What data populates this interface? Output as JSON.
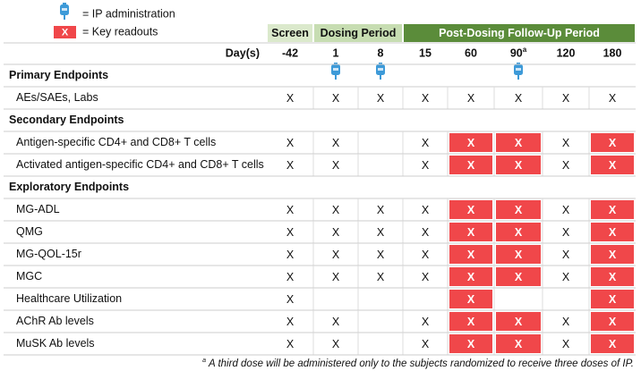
{
  "legend": {
    "ip_text": "= IP administration",
    "key_symbol": "X",
    "key_text": "= Key readouts"
  },
  "header": {
    "columns": [
      "Screen",
      "Dosing Period",
      "Post-Dosing Follow-Up Period"
    ],
    "day_label": "Day(s)"
  },
  "days": [
    {
      "day": "-42",
      "ip": false
    },
    {
      "day": "1",
      "ip": true
    },
    {
      "day": "8",
      "ip": true
    },
    {
      "day": "15",
      "ip": false
    },
    {
      "day": "60",
      "ip": false
    },
    {
      "day": "90",
      "note": "a",
      "ip": true
    },
    {
      "day": "120",
      "ip": false
    },
    {
      "day": "180",
      "ip": false
    }
  ],
  "sections": [
    {
      "title": "Primary Endpoints",
      "rows": [
        {
          "label": "AEs/SAEs, Labs",
          "cells": [
            "X",
            "X",
            "X",
            "X",
            "X",
            "X",
            "X",
            "X"
          ],
          "key": [
            false,
            false,
            false,
            false,
            false,
            false,
            false,
            false
          ]
        }
      ]
    },
    {
      "title": "Secondary Endpoints",
      "rows": [
        {
          "label": "Antigen-specific CD4+ and CD8+ T cells",
          "cells": [
            "X",
            "X",
            null,
            "X",
            "X",
            "X",
            "X",
            "X"
          ],
          "key": [
            false,
            false,
            false,
            false,
            true,
            true,
            false,
            true
          ]
        },
        {
          "label": "Activated antigen-specific CD4+ and CD8+ T cells",
          "cells": [
            "X",
            "X",
            null,
            "X",
            "X",
            "X",
            "X",
            "X"
          ],
          "key": [
            false,
            false,
            false,
            false,
            true,
            true,
            false,
            true
          ]
        }
      ]
    },
    {
      "title": "Exploratory Endpoints",
      "rows": [
        {
          "label": "MG-ADL",
          "cells": [
            "X",
            "X",
            "X",
            "X",
            "X",
            "X",
            "X",
            "X"
          ],
          "key": [
            false,
            false,
            false,
            false,
            true,
            true,
            false,
            true
          ]
        },
        {
          "label": "QMG",
          "cells": [
            "X",
            "X",
            "X",
            "X",
            "X",
            "X",
            "X",
            "X"
          ],
          "key": [
            false,
            false,
            false,
            false,
            true,
            true,
            false,
            true
          ]
        },
        {
          "label": "MG-QOL-15r",
          "cells": [
            "X",
            "X",
            "X",
            "X",
            "X",
            "X",
            "X",
            "X"
          ],
          "key": [
            false,
            false,
            false,
            false,
            true,
            true,
            false,
            true
          ]
        },
        {
          "label": "MGC",
          "cells": [
            "X",
            "X",
            "X",
            "X",
            "X",
            "X",
            "X",
            "X"
          ],
          "key": [
            false,
            false,
            false,
            false,
            true,
            true,
            false,
            true
          ]
        },
        {
          "label": "Healthcare Utilization",
          "cells": [
            "X",
            null,
            null,
            null,
            "X",
            null,
            null,
            "X"
          ],
          "key": [
            false,
            false,
            false,
            false,
            true,
            false,
            false,
            true
          ]
        },
        {
          "label": "AChR Ab levels",
          "cells": [
            "X",
            "X",
            null,
            "X",
            "X",
            "X",
            "X",
            "X"
          ],
          "key": [
            false,
            false,
            false,
            false,
            true,
            true,
            false,
            true
          ]
        },
        {
          "label": "MuSK Ab levels",
          "cells": [
            "X",
            "X",
            null,
            "X",
            "X",
            "X",
            "X",
            "X"
          ],
          "key": [
            false,
            false,
            false,
            false,
            true,
            true,
            false,
            true
          ]
        }
      ]
    }
  ],
  "footnote": {
    "mark": "a",
    "text": "A third dose will be administered only to the subjects randomized to receive three doses of IP."
  }
}
